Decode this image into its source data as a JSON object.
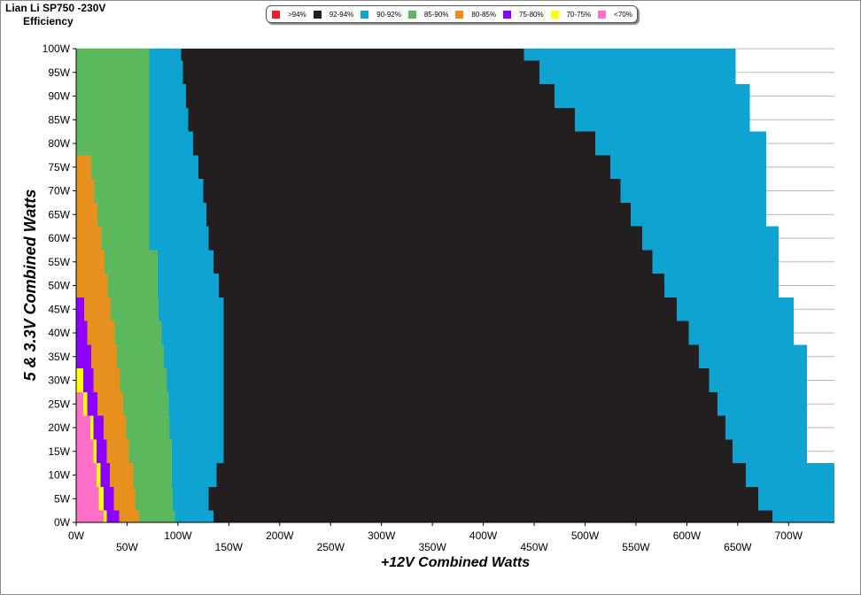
{
  "header": {
    "title": "Lian Li SP750 -230V",
    "subtitle": "Efficiency"
  },
  "legend": [
    {
      "label": ">94%",
      "color": "#e8202a"
    },
    {
      "label": "92-94%",
      "color": "#231f20"
    },
    {
      "label": "90-92%",
      "color": "#0fa3d1"
    },
    {
      "label": "85-90%",
      "color": "#5cb85c"
    },
    {
      "label": "80-85%",
      "color": "#e8901e"
    },
    {
      "label": "75-80%",
      "color": "#8b00ff"
    },
    {
      "label": "70-75%",
      "color": "#ffff00"
    },
    {
      "label": "<70%",
      "color": "#ff6ec7"
    }
  ],
  "chart_data": {
    "type": "heatmap",
    "title": "Lian Li SP750 -230V Efficiency",
    "xlabel": "+12V Combined Watts",
    "ylabel": "5 & 3.3V Combined Watts",
    "xlim": [
      0,
      745
    ],
    "ylim": [
      0,
      100
    ],
    "x_ticks": [
      "0W",
      "50W",
      "100W",
      "150W",
      "200W",
      "250W",
      "300W",
      "350W",
      "400W",
      "450W",
      "500W",
      "550W",
      "600W",
      "650W",
      "700W"
    ],
    "y_ticks": [
      "0W",
      "5W",
      "10W",
      "15W",
      "20W",
      "25W",
      "30W",
      "35W",
      "40W",
      "45W",
      "50W",
      "55W",
      "60W",
      "65W",
      "70W",
      "75W",
      "80W",
      "85W",
      "90W",
      "95W",
      "100W"
    ],
    "grid": true,
    "legend_position": "top-center",
    "categories": [
      "<70%",
      "70-75%",
      "75-80%",
      "80-85%",
      "85-90%",
      "90-92%",
      "92-94%",
      ">94%"
    ],
    "y_values": [
      0,
      5,
      10,
      15,
      20,
      25,
      30,
      35,
      40,
      45,
      50,
      55,
      60,
      65,
      70,
      75,
      80,
      85,
      90,
      95,
      100
    ],
    "region_upper_bounds_x": {
      "<70%": [
        27,
        22,
        20,
        17,
        14,
        7,
        0,
        0,
        0,
        0,
        0,
        0,
        0,
        0,
        0,
        0,
        0,
        0,
        0,
        0,
        0
      ],
      "70-75%": [
        30,
        27,
        24,
        20,
        17,
        11,
        7,
        0,
        0,
        0,
        0,
        0,
        0,
        0,
        0,
        0,
        0,
        0,
        0,
        0,
        0
      ],
      "75-80%": [
        42,
        37,
        33,
        30,
        27,
        21,
        17,
        15,
        11,
        8,
        0,
        0,
        0,
        0,
        0,
        0,
        0,
        0,
        0,
        0,
        0
      ],
      "80-85%": [
        62,
        58,
        56,
        52,
        49,
        46,
        43,
        40,
        38,
        34,
        31,
        28,
        25,
        21,
        18,
        15,
        0,
        0,
        0,
        0,
        0
      ],
      "85-90%": [
        97,
        95,
        94,
        94,
        92,
        91,
        89,
        86,
        84,
        81,
        80,
        80,
        72,
        72,
        72,
        72,
        72,
        72,
        72,
        72,
        72
      ],
      "90-92%": [
        135,
        130,
        138,
        145,
        145,
        145,
        145,
        145,
        145,
        145,
        140,
        135,
        130,
        128,
        125,
        120,
        115,
        110,
        108,
        105,
        103
      ],
      "92-94%": [
        684,
        670,
        658,
        645,
        638,
        630,
        622,
        612,
        602,
        590,
        578,
        566,
        556,
        545,
        535,
        525,
        510,
        490,
        470,
        455,
        440
      ],
      "max_x": [
        745,
        745,
        745,
        718,
        718,
        718,
        718,
        718,
        705,
        705,
        690,
        690,
        690,
        678,
        678,
        678,
        678,
        662,
        662,
        648,
        648
      ]
    }
  }
}
